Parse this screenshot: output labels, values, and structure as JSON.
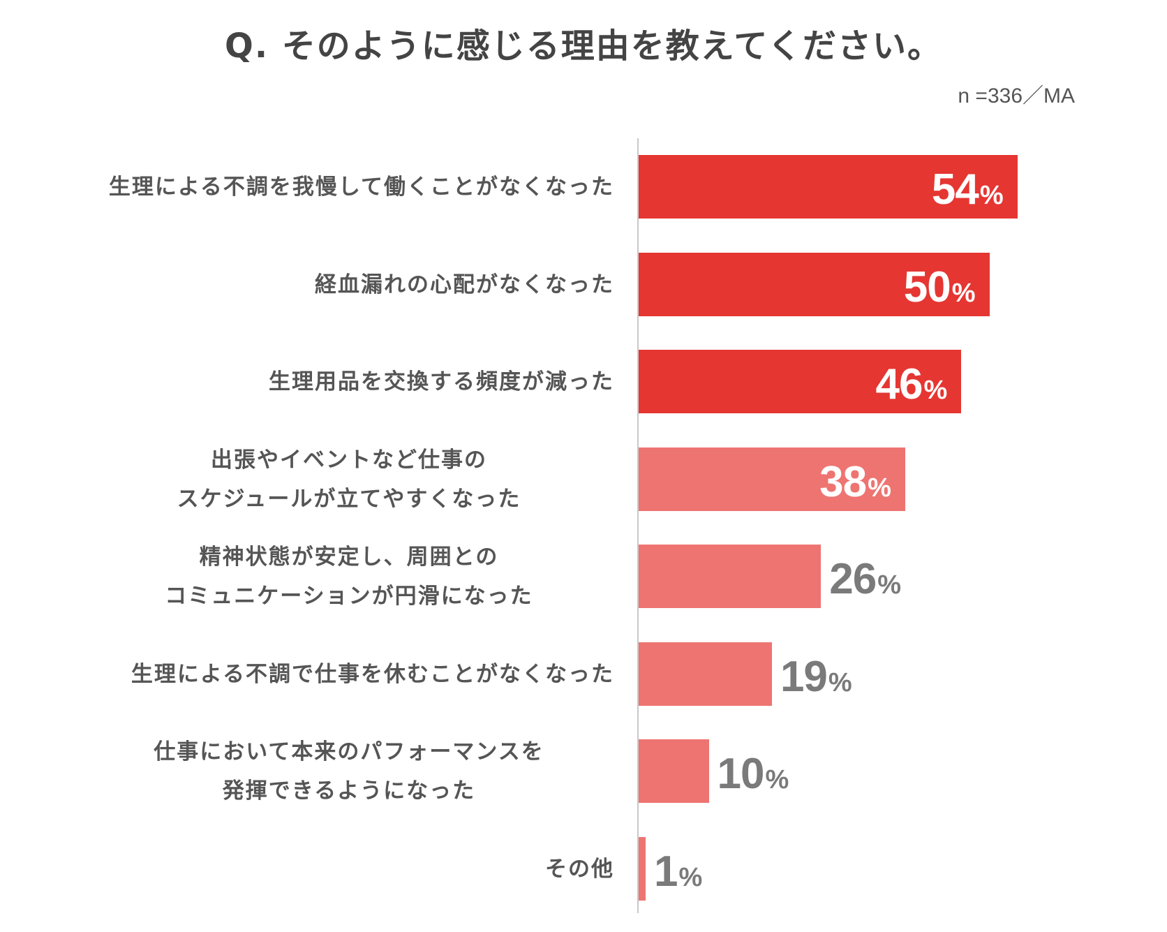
{
  "chart_data": {
    "type": "bar",
    "orientation": "horizontal",
    "title": "Q. そのように感じる理由を教えてください。",
    "note": "n =336／MA",
    "unit": "%",
    "xlim": [
      0,
      100
    ],
    "grid": false,
    "categories": [
      [
        "生理による不調を我慢して働くことがなくなった"
      ],
      [
        "経血漏れの心配がなくなった"
      ],
      [
        "生理用品を交換する頻度が減った"
      ],
      [
        "出張やイベントなど仕事の",
        "スケジュールが立てやすくなった"
      ],
      [
        "精神状態が安定し、周囲との",
        "コミュニケーションが円滑になった"
      ],
      [
        "生理による不調で仕事を休むことがなくなった"
      ],
      [
        "仕事において本来のパフォーマンスを",
        "発揮できるようになった"
      ],
      [
        "その他"
      ]
    ],
    "values": [
      54,
      50,
      46,
      38,
      26,
      19,
      10,
      1
    ],
    "value_labels": [
      "54",
      "50",
      "46",
      "38",
      "26",
      "19",
      "10",
      "1"
    ],
    "colors": [
      "#e53632",
      "#e53632",
      "#e53632",
      "#ee7471",
      "#ee7471",
      "#ee7471",
      "#ee7471",
      "#ee7471"
    ],
    "label_inside_color": "#ffffff",
    "label_outside_color": "#7a7a7a"
  }
}
